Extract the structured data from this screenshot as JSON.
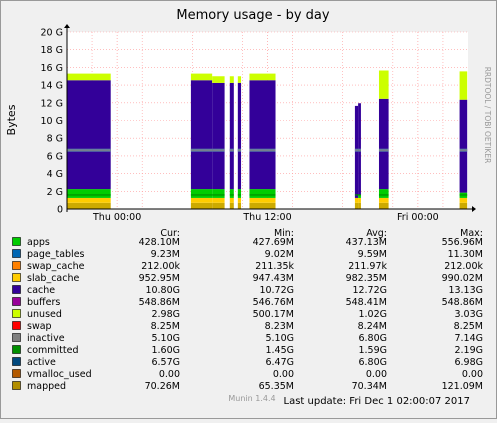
{
  "chart_data": {
    "type": "area",
    "title": "Memory usage - by day",
    "ylabel": "Bytes",
    "side_label": "RRDTOOL / TOBI OETIKER",
    "ylim": [
      0,
      21474836480
    ],
    "y_ticks": [
      {
        "label": "0",
        "value": 0
      },
      {
        "label": "2 G",
        "value": 2147483648
      },
      {
        "label": "4 G",
        "value": 4294967296
      },
      {
        "label": "6 G",
        "value": 6442450944
      },
      {
        "label": "8 G",
        "value": 8589934592
      },
      {
        "label": "10 G",
        "value": 10737418240
      },
      {
        "label": "12 G",
        "value": 12884901888
      },
      {
        "label": "14 G",
        "value": 15032385536
      },
      {
        "label": "16 G",
        "value": 17179869184
      },
      {
        "label": "18 G",
        "value": 19327352832
      },
      {
        "label": "20 G",
        "value": 21474836480
      }
    ],
    "x_ticks": [
      "Thu 00:00",
      "Thu 12:00",
      "Fri 00:00"
    ],
    "grid": true,
    "data_intervals": [
      {
        "start": 0.0,
        "end": 0.109,
        "stack": [
          0.7,
          0.55,
          1.0,
          12.3,
          0.75
        ]
      },
      {
        "start": 0.309,
        "end": 0.362,
        "stack": [
          0.7,
          0.55,
          1.0,
          12.3,
          0.75
        ]
      },
      {
        "start": 0.362,
        "end": 0.393,
        "stack": [
          0.7,
          0.55,
          1.0,
          12.0,
          0.75
        ]
      },
      {
        "start": 0.406,
        "end": 0.416,
        "stack": [
          0.7,
          0.55,
          1.0,
          12.0,
          0.75
        ]
      },
      {
        "start": 0.426,
        "end": 0.434,
        "stack": [
          0.7,
          0.55,
          1.0,
          12.0,
          0.75
        ]
      },
      {
        "start": 0.455,
        "end": 0.52,
        "stack": [
          0.7,
          0.55,
          1.0,
          12.3,
          0.75
        ]
      },
      {
        "start": 0.718,
        "end": 0.726,
        "stack": [
          0.7,
          0.55,
          0.0,
          10.4,
          0.0
        ]
      },
      {
        "start": 0.726,
        "end": 0.733,
        "stack": [
          0.7,
          0.55,
          0.3,
          10.4,
          0.0
        ]
      },
      {
        "start": 0.778,
        "end": 0.802,
        "stack": [
          0.7,
          0.55,
          1.0,
          10.2,
          3.2
        ]
      },
      {
        "start": 0.979,
        "end": 0.998,
        "stack": [
          0.7,
          0.55,
          0.6,
          10.5,
          3.2
        ]
      }
    ],
    "stack_colors": [
      "#ccaa00",
      "#ffcc00",
      "#00cc00",
      "#330099",
      "#ccff00"
    ],
    "committed_level": 6.7,
    "series": [
      {
        "name": "apps",
        "color": "#00cc00",
        "cur": "428.10M",
        "min": "427.69M",
        "avg": "437.13M",
        "max": "556.96M"
      },
      {
        "name": "page_tables",
        "color": "#0066b3",
        "cur": "9.23M",
        "min": "9.02M",
        "avg": "9.59M",
        "max": "11.30M"
      },
      {
        "name": "swap_cache",
        "color": "#ff8000",
        "cur": "212.00k",
        "min": "211.35k",
        "avg": "211.97k",
        "max": "212.00k"
      },
      {
        "name": "slab_cache",
        "color": "#ffcc00",
        "cur": "952.95M",
        "min": "947.43M",
        "avg": "982.35M",
        "max": "990.02M"
      },
      {
        "name": "cache",
        "color": "#330099",
        "cur": "10.80G",
        "min": "10.72G",
        "avg": "12.72G",
        "max": "13.13G"
      },
      {
        "name": "buffers",
        "color": "#990099",
        "cur": "548.86M",
        "min": "546.76M",
        "avg": "548.41M",
        "max": "548.86M"
      },
      {
        "name": "unused",
        "color": "#ccff00",
        "cur": "2.98G",
        "min": "500.17M",
        "avg": "1.02G",
        "max": "3.03G"
      },
      {
        "name": "swap",
        "color": "#ff0000",
        "cur": "8.25M",
        "min": "8.23M",
        "avg": "8.24M",
        "max": "8.25M"
      },
      {
        "name": "inactive",
        "color": "#808080",
        "cur": "5.10G",
        "min": "5.10G",
        "avg": "6.80G",
        "max": "7.14G"
      },
      {
        "name": "committed",
        "color": "#008f00",
        "cur": "1.60G",
        "min": "1.45G",
        "avg": "1.59G",
        "max": "2.19G"
      },
      {
        "name": "active",
        "color": "#00487d",
        "cur": "6.57G",
        "min": "6.47G",
        "avg": "6.80G",
        "max": "6.98G"
      },
      {
        "name": "vmalloc_used",
        "color": "#b35a00",
        "cur": "0.00",
        "min": "0.00",
        "avg": "0.00",
        "max": "0.00"
      },
      {
        "name": "mapped",
        "color": "#b38f00",
        "cur": "70.26M",
        "min": "65.35M",
        "avg": "70.34M",
        "max": "121.09M"
      }
    ]
  },
  "legend_headers": {
    "cur": "Cur:",
    "min": "Min:",
    "avg": "Avg:",
    "max": "Max:"
  },
  "footer": {
    "version": "Munin 1.4.4",
    "last_update": "Last update:  Fri Dec  1 02:00:07 2017"
  }
}
